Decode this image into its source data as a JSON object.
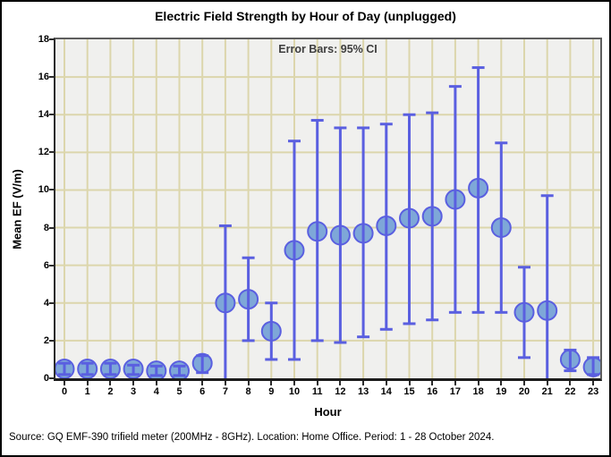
{
  "source": "Source: GQ EMF-390 trifield meter (200MHz - 8GHz). Location: Home Office. Period: 1 - 28 October 2024.",
  "chart_data": {
    "type": "scatter",
    "title": "Electric Field Strength by Hour of Day (unplugged)",
    "annotation": "Error Bars: 95% CI",
    "error_bars": "95% CI",
    "xlabel": "Hour",
    "ylabel": "Mean EF (V/m)",
    "x": [
      0,
      1,
      2,
      3,
      4,
      5,
      6,
      7,
      8,
      9,
      10,
      11,
      12,
      13,
      14,
      15,
      16,
      17,
      18,
      19,
      20,
      21,
      22,
      23
    ],
    "series": [
      {
        "name": "Mean EF",
        "mean": [
          0.5,
          0.5,
          0.5,
          0.5,
          0.4,
          0.4,
          0.8,
          4.0,
          4.2,
          2.5,
          6.8,
          7.8,
          7.6,
          7.7,
          8.1,
          8.5,
          8.6,
          9.5,
          10.1,
          8.0,
          3.5,
          3.6,
          1.0,
          0.6
        ],
        "ci_lower": [
          0.2,
          0.2,
          0.2,
          0.2,
          0.15,
          0.15,
          0.3,
          0.0,
          2.0,
          1.0,
          1.0,
          2.0,
          1.9,
          2.2,
          2.6,
          2.9,
          3.1,
          3.5,
          3.5,
          3.5,
          1.1,
          0.0,
          0.4,
          0.2
        ],
        "ci_upper": [
          0.8,
          0.8,
          0.8,
          0.7,
          0.65,
          0.65,
          1.2,
          8.1,
          6.4,
          4.0,
          12.6,
          13.7,
          13.3,
          13.3,
          13.5,
          14.0,
          14.1,
          15.5,
          16.5,
          12.5,
          5.9,
          9.7,
          1.5,
          1.1
        ]
      }
    ],
    "ylim": [
      0,
      18
    ],
    "yticks": [
      0,
      2,
      4,
      6,
      8,
      10,
      12,
      14,
      16,
      18
    ],
    "xticks": [
      0,
      1,
      2,
      3,
      4,
      5,
      6,
      7,
      8,
      9,
      10,
      11,
      12,
      13,
      14,
      15,
      16,
      17,
      18,
      19,
      20,
      21,
      22,
      23
    ],
    "grid": true,
    "legend": "none",
    "colors": {
      "point_fill": "#7ea7d8",
      "accent": "#5a5fe0",
      "grid": "#dcd6ac",
      "plot_bg": "#f0f0ee",
      "axis": "#2b2b2b",
      "annotation_text": "#3e3e3e"
    }
  }
}
